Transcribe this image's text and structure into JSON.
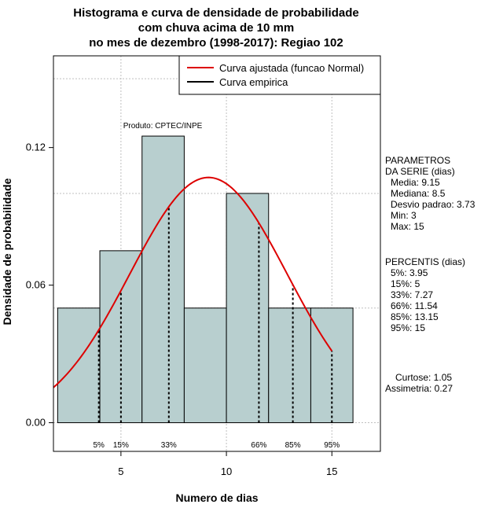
{
  "chart_data": {
    "type": "bar",
    "title": [
      "Histograma e curva de densidade de probabilidade",
      "com chuva acima de 10 mm",
      "no mes de dezembro (1998-2017): Regiao 102"
    ],
    "xlabel": "Numero de dias",
    "ylabel": "Densidade de probabilidade",
    "xlim": [
      1.8,
      17.3
    ],
    "ylim": [
      -0.0125,
      0.16
    ],
    "x_ticks": [
      5,
      10,
      15
    ],
    "y_ticks": [
      0.0,
      0.06,
      0.12
    ],
    "y_tick_labels": [
      "0.00",
      "0.06",
      "0.12"
    ],
    "grid": true,
    "grid_x": [
      5,
      10,
      15
    ],
    "grid_y": [
      0.0,
      0.05,
      0.1,
      0.15
    ],
    "bars": [
      {
        "x0": 2,
        "x1": 4,
        "density": 0.05
      },
      {
        "x0": 4,
        "x1": 6,
        "density": 0.075
      },
      {
        "x0": 6,
        "x1": 8,
        "density": 0.125
      },
      {
        "x0": 8,
        "x1": 10,
        "density": 0.05
      },
      {
        "x0": 10,
        "x1": 12,
        "density": 0.1
      },
      {
        "x0": 12,
        "x1": 14,
        "density": 0.05
      },
      {
        "x0": 14,
        "x1": 16,
        "density": 0.05
      }
    ],
    "bar_color": "#b8cfcf",
    "curve": {
      "mean": 9.15,
      "sd": 3.73,
      "x_range": [
        1.8,
        15
      ],
      "color": "#dd0000"
    },
    "percentile_lines": [
      {
        "x": 3.95,
        "label": "5%"
      },
      {
        "x": 5,
        "label": "15%"
      },
      {
        "x": 7.27,
        "label": "33%"
      },
      {
        "x": 11.54,
        "label": "66%"
      },
      {
        "x": 13.15,
        "label": "85%"
      },
      {
        "x": 15,
        "label": "95%"
      }
    ],
    "legend": {
      "placement": "top-right",
      "entries": [
        {
          "label": "Curva ajustada (funcao Normal)",
          "color": "#dd0000"
        },
        {
          "label": "Curva empirica",
          "color": "#000000"
        }
      ]
    },
    "annotation": "Produto: CPTEC/INPE",
    "parameters": {
      "heading": [
        "PARAMETROS",
        "DA SERIE (dias)"
      ],
      "lines": [
        "Media: 9.15",
        "Mediana: 8.5",
        "Desvio padrao: 3.73",
        "Min: 3",
        "Max: 15"
      ]
    },
    "percentis": {
      "heading": "PERCENTIS (dias)",
      "lines": [
        "5%: 3.95",
        "15%: 5",
        "33%: 7.27",
        "66%: 11.54",
        "85%: 13.15",
        "95%: 15"
      ]
    },
    "shape": {
      "lines": [
        "Curtose: 1.05",
        "Assimetria: 0.27"
      ]
    }
  }
}
